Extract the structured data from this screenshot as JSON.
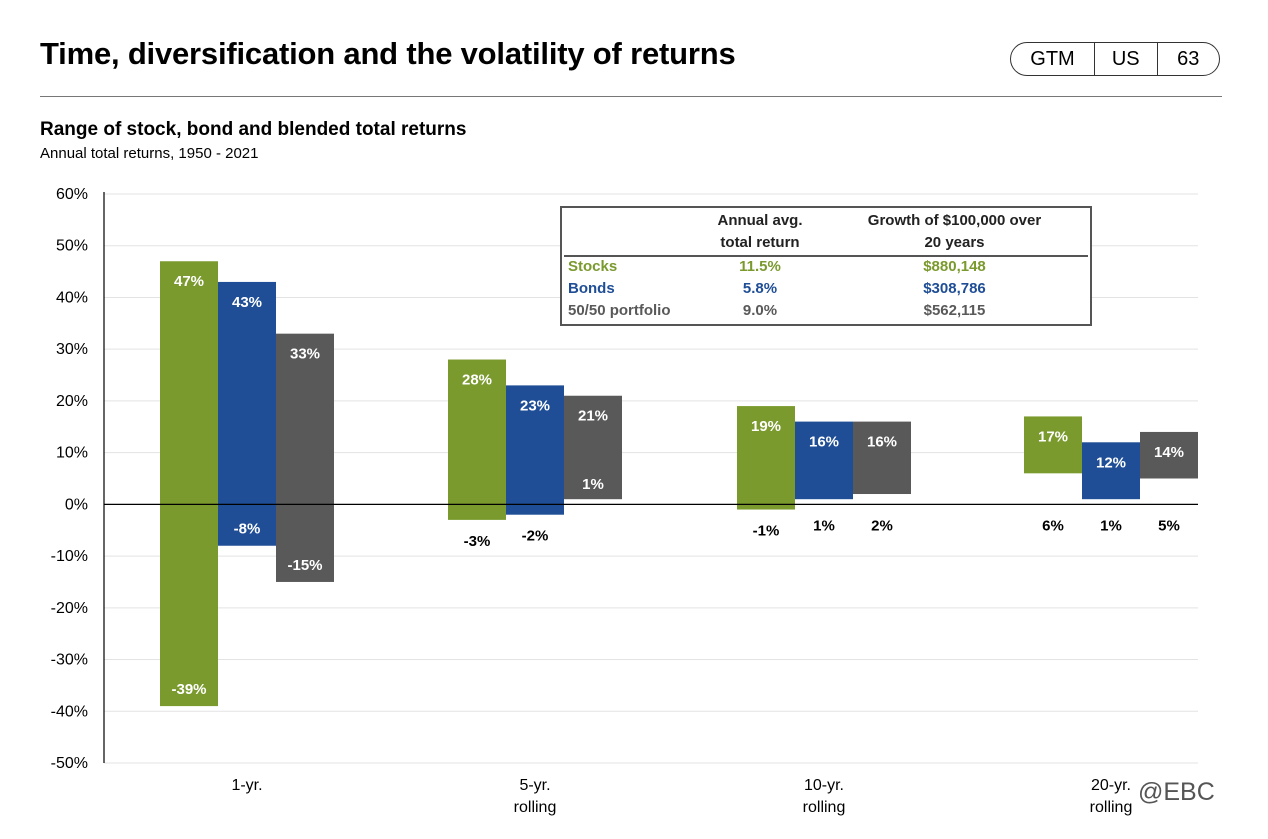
{
  "header": {
    "title": "Time, diversification and the volatility of returns",
    "badge": [
      "GTM",
      "US",
      "63"
    ]
  },
  "subtitle": "Range of stock, bond and blended total returns",
  "caption": "Annual total returns, 1950 - 2021",
  "legend_table": {
    "col1": [
      "Annual avg.",
      "total return"
    ],
    "col2": [
      "Growth of $100,000 over",
      "20 years"
    ],
    "rows": [
      {
        "name": "Stocks",
        "avg": "11.5%",
        "growth": "$880,148",
        "color": "#7a9a2e"
      },
      {
        "name": "Bonds",
        "avg": "5.8%",
        "growth": "$308,786",
        "color": "#1f4e96"
      },
      {
        "name": "50/50 portfolio",
        "avg": "9.0%",
        "growth": "$562,115",
        "color": "#595959"
      }
    ]
  },
  "watermark": "@EBC",
  "chart_data": {
    "type": "bar",
    "subtype": "floating range",
    "categories": [
      [
        "1-yr."
      ],
      [
        "5-yr.",
        "rolling"
      ],
      [
        "10-yr.",
        "rolling"
      ],
      [
        "20-yr.",
        "rolling"
      ]
    ],
    "ylim": [
      -50,
      60
    ],
    "yticks": [
      60,
      50,
      40,
      30,
      20,
      10,
      0,
      -10,
      -20,
      -30,
      -40,
      -50
    ],
    "grid": true,
    "series": [
      {
        "name": "Stocks",
        "color": "#7a9a2e",
        "high": [
          47,
          28,
          19,
          17
        ],
        "low": [
          -39,
          -3,
          -1,
          6
        ]
      },
      {
        "name": "Bonds",
        "color": "#1f4e96",
        "high": [
          43,
          23,
          16,
          12
        ],
        "low": [
          -8,
          -2,
          1,
          1
        ]
      },
      {
        "name": "50/50 portfolio",
        "color": "#595959",
        "high": [
          33,
          21,
          16,
          14
        ],
        "low": [
          -15,
          1,
          2,
          5
        ]
      }
    ]
  }
}
